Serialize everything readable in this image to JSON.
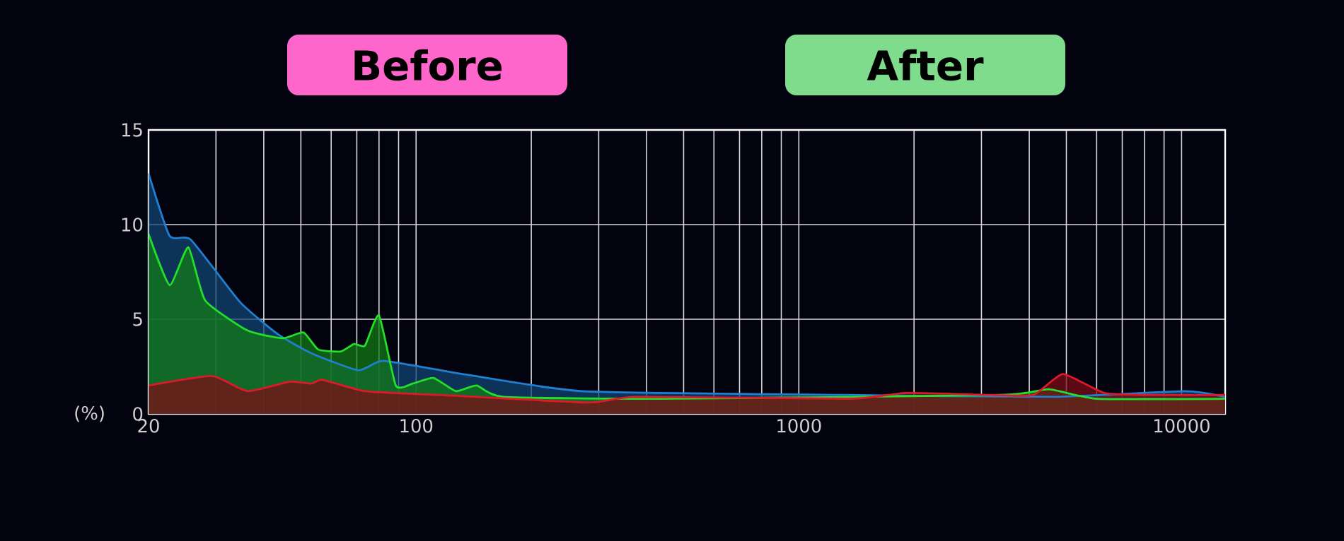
{
  "chart_data": {
    "type": "area",
    "log": "x",
    "xlim": [
      20,
      13000
    ],
    "ylim": [
      0,
      15
    ],
    "xticks": [
      20,
      100,
      1000,
      10000
    ],
    "yticks": [
      0,
      5,
      10,
      15
    ],
    "ylabel": "(%)",
    "grid": true,
    "annotations": [
      "Before",
      "After"
    ],
    "series": [
      {
        "color": "#1f7fd0",
        "x": [
          20,
          22.7,
          25.8,
          34.7,
          43.6,
          53.3,
          70.6,
          82,
          124,
          271,
          1315,
          4600,
          10200,
          13000
        ],
        "values": [
          12.7,
          9.4,
          9.2,
          5.9,
          4.2,
          3.2,
          2.3,
          2.8,
          2.2,
          1.2,
          1.0,
          0.9,
          1.2,
          0.9
        ]
      },
      {
        "color": "#22e02a",
        "x": [
          20,
          22.7,
          25.4,
          28.1,
          36.3,
          44.9,
          50.8,
          55.5,
          63.6,
          68.9,
          73.5,
          80,
          88.5,
          98,
          111,
          127,
          144,
          169,
          434,
          3360,
          4500,
          6000,
          13000
        ],
        "values": [
          9.5,
          6.8,
          8.8,
          6.0,
          4.4,
          4.0,
          4.3,
          3.4,
          3.3,
          3.7,
          3.6,
          5.2,
          1.5,
          1.6,
          1.9,
          1.2,
          1.5,
          0.9,
          0.8,
          1.0,
          1.3,
          0.8,
          0.8
        ]
      },
      {
        "color": "#e0182a",
        "x": [
          20,
          29.3,
          36.3,
          46.8,
          53.3,
          57,
          73.5,
          115,
          282,
          377,
          1360,
          1895,
          3160,
          4100,
          4900,
          6300,
          8700,
          13000
        ],
        "values": [
          1.5,
          2.0,
          1.2,
          1.7,
          1.6,
          1.8,
          1.2,
          1.0,
          0.6,
          0.9,
          0.8,
          1.1,
          1.0,
          1.0,
          2.1,
          1.1,
          1.0,
          1.0
        ]
      }
    ]
  }
}
